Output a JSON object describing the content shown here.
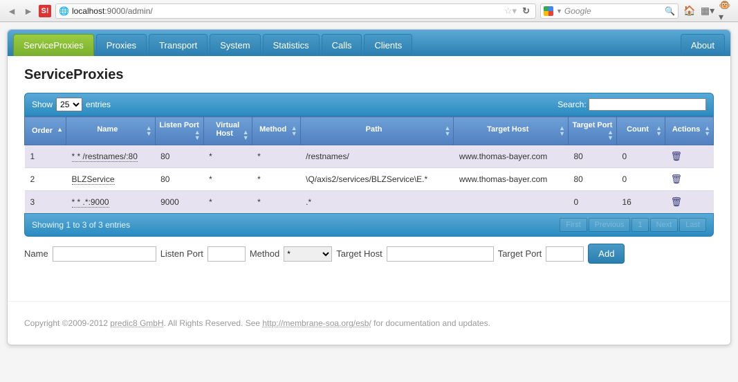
{
  "browser": {
    "url_host": "localhost",
    "url_rest": ":9000/admin/",
    "search_placeholder": "Google"
  },
  "tabs": [
    {
      "label": "ServiceProxies",
      "active": true
    },
    {
      "label": "Proxies"
    },
    {
      "label": "Transport"
    },
    {
      "label": "System"
    },
    {
      "label": "Statistics"
    },
    {
      "label": "Calls"
    },
    {
      "label": "Clients"
    }
  ],
  "tab_right": {
    "label": "About"
  },
  "page_title": "ServiceProxies",
  "length_menu": {
    "show": "Show",
    "value": "25",
    "entries": "entries"
  },
  "search_label": "Search:",
  "columns": [
    {
      "label": "Order",
      "sorted": true
    },
    {
      "label": "Name"
    },
    {
      "label": "Listen Port"
    },
    {
      "label": "Virtual Host"
    },
    {
      "label": "Method"
    },
    {
      "label": "Path"
    },
    {
      "label": "Target Host"
    },
    {
      "label": "Target Port"
    },
    {
      "label": "Count"
    },
    {
      "label": "Actions"
    }
  ],
  "rows": [
    {
      "order": "1",
      "name": "* * /restnames/:80",
      "listen_port": "80",
      "vhost": "*",
      "method": "*",
      "path": "/restnames/",
      "target_host": "www.thomas-bayer.com",
      "target_port": "80",
      "count": "0"
    },
    {
      "order": "2",
      "name": "BLZService",
      "listen_port": "80",
      "vhost": "*",
      "method": "*",
      "path": "\\Q/axis2/services/BLZService\\E.*",
      "target_host": "www.thomas-bayer.com",
      "target_port": "80",
      "count": "0"
    },
    {
      "order": "3",
      "name": "* * .*:9000",
      "listen_port": "9000",
      "vhost": "*",
      "method": "*",
      "path": ".*",
      "target_host": "",
      "target_port": "0",
      "count": "16"
    }
  ],
  "info_text": "Showing 1 to 3 of 3 entries",
  "pager": {
    "first": "First",
    "prev": "Previous",
    "page": "1",
    "next": "Next",
    "last": "Last"
  },
  "add_form": {
    "name_label": "Name",
    "listen_port_label": "Listen Port",
    "method_label": "Method",
    "method_value": "*",
    "target_host_label": "Target Host",
    "target_port_label": "Target Port",
    "add_btn": "Add"
  },
  "footer": {
    "pre": "Copyright ©2009-2012 ",
    "company": "predic8 GmbH",
    "mid": ". All Rights Reserved. See ",
    "link": "http://membrane-soa.org/esb/",
    "post": " for documentation and updates."
  },
  "colors": {
    "tab_active_bg": "#8bc340",
    "tab_bg": "#3b90c0",
    "header_bg": "#3b90c0",
    "th_bg": "#5f8ecf"
  }
}
